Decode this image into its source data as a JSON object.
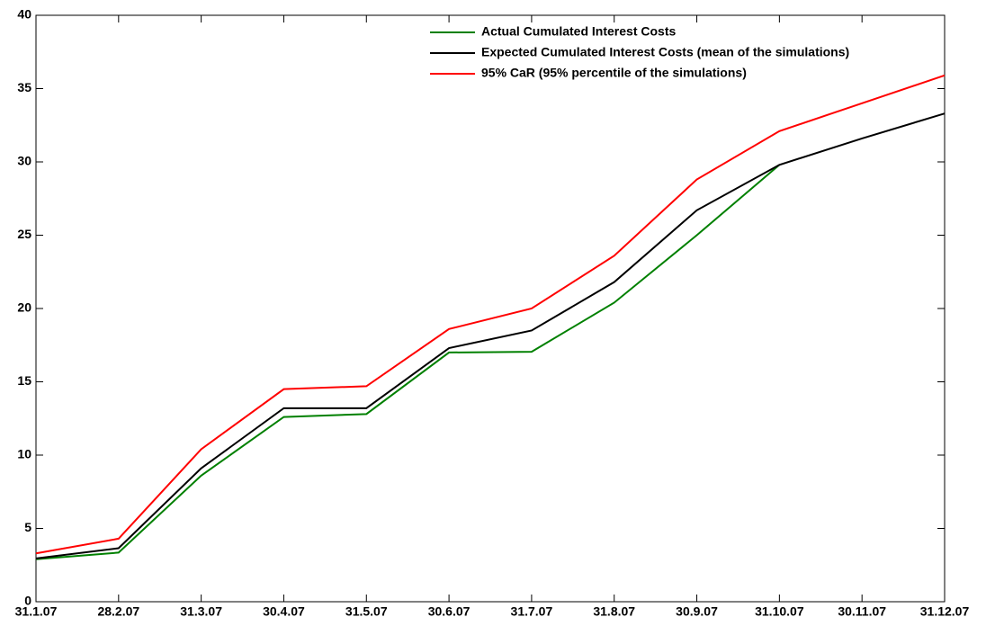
{
  "chart_data": {
    "type": "line",
    "categories": [
      "31.1.07",
      "28.2.07",
      "31.3.07",
      "30.4.07",
      "31.5.07",
      "30.6.07",
      "31.7.07",
      "31.8.07",
      "30.9.07",
      "31.10.07",
      "30.11.07",
      "31.12.07"
    ],
    "series": [
      {
        "name": "Actual Cumulated Interest Costs",
        "color": "#008000",
        "values": [
          2.9,
          3.35,
          8.6,
          12.6,
          12.8,
          17.0,
          17.05,
          20.4,
          25.0,
          29.8,
          null,
          null
        ]
      },
      {
        "name": "Expected Cumulated Interest Costs (mean of the simulations)",
        "color": "#000000",
        "values": [
          2.95,
          3.65,
          9.1,
          13.2,
          13.2,
          17.3,
          18.5,
          21.8,
          26.7,
          29.8,
          31.6,
          33.3
        ]
      },
      {
        "name": "95% CaR (95% percentile of the simulations)",
        "color": "#ff0000",
        "values": [
          3.3,
          4.3,
          10.4,
          14.5,
          14.7,
          18.6,
          20.0,
          23.6,
          28.8,
          32.1,
          34.0,
          35.9
        ]
      }
    ],
    "ylim": [
      0,
      40
    ],
    "yticks": [
      0,
      5,
      10,
      15,
      20,
      25,
      30,
      35,
      40
    ],
    "grid": false,
    "legend": "top-right"
  }
}
